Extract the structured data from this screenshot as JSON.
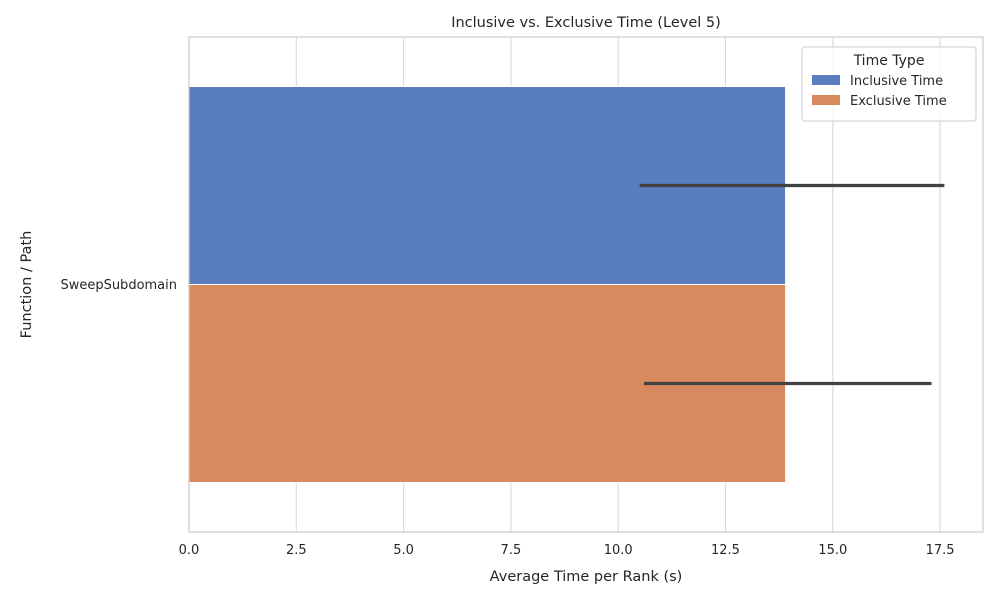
{
  "chart_data": {
    "type": "bar",
    "orientation": "horizontal",
    "title": "Inclusive vs. Exclusive Time (Level 5)",
    "xlabel": "Average Time per Rank (s)",
    "ylabel": "Function / Path",
    "categories": [
      "SweepSubdomain"
    ],
    "series": [
      {
        "name": "Inclusive Time",
        "color": "#5a7dbf",
        "values": [
          13.9
        ],
        "ci": [
          [
            10.5,
            17.6
          ]
        ]
      },
      {
        "name": "Exclusive Time",
        "color": "#d9895e",
        "values": [
          13.9
        ],
        "ci": [
          [
            10.6,
            17.3
          ]
        ]
      }
    ],
    "xlim": [
      0,
      18.5
    ],
    "xticks": [
      "0.0",
      "2.5",
      "5.0",
      "7.5",
      "10.0",
      "12.5",
      "15.0",
      "17.5"
    ],
    "grid": true,
    "legend": {
      "title": "Time Type",
      "placement": "top-right"
    }
  }
}
